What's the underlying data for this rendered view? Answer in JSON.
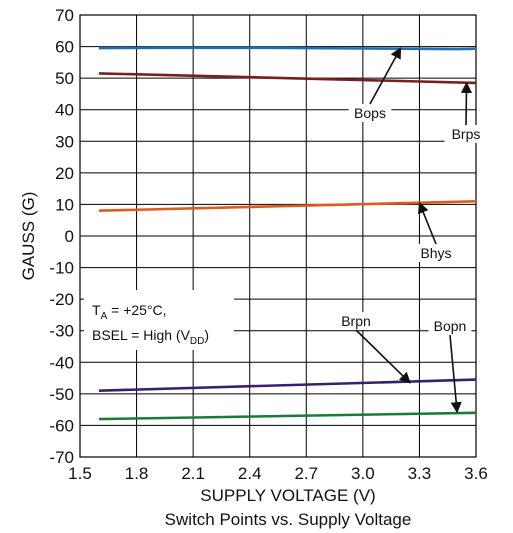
{
  "chart_data": {
    "type": "line",
    "title": "Switch Points vs. Supply Voltage",
    "xlabel": "SUPPLY VOLTAGE (V)",
    "ylabel": "GAUSS (G)",
    "xlim": [
      1.5,
      3.6
    ],
    "ylim": [
      -70,
      70
    ],
    "xticks": [
      "1.5",
      "1.8",
      "2.1",
      "2.4",
      "2.7",
      "3.0",
      "3.3",
      "3.6"
    ],
    "yticks": [
      "70",
      "60",
      "50",
      "40",
      "30",
      "20",
      "10",
      "0",
      "-10",
      "-20",
      "-30",
      "-40",
      "-50",
      "-60",
      "-70"
    ],
    "grid": true,
    "series": [
      {
        "name": "Bops",
        "color": "#1f6fb2",
        "x": [
          1.6,
          2.0,
          2.5,
          3.0,
          3.5,
          3.6
        ],
        "y": [
          59.5,
          59.6,
          59.6,
          59.4,
          59.2,
          59.3
        ]
      },
      {
        "name": "Brps",
        "color": "#7a1f1f",
        "x": [
          1.6,
          3.6
        ],
        "y": [
          51.5,
          48.5
        ]
      },
      {
        "name": "Bhys",
        "color": "#e05a1c",
        "x": [
          1.6,
          3.6
        ],
        "y": [
          8.0,
          11.0
        ]
      },
      {
        "name": "Brpn",
        "color": "#3a1f6e",
        "x": [
          1.6,
          3.6
        ],
        "y": [
          -49.0,
          -45.5
        ]
      },
      {
        "name": "Bopn",
        "color": "#1a7a3a",
        "x": [
          1.6,
          3.6
        ],
        "y": [
          -58.0,
          -56.0
        ]
      }
    ],
    "annotations": [
      {
        "label": "Bops",
        "target": [
          3.2,
          59.5
        ]
      },
      {
        "label": "Brps",
        "target": [
          3.55,
          48.5
        ]
      },
      {
        "label": "Bhys",
        "target": [
          3.3,
          10.5
        ]
      },
      {
        "label": "Brpn",
        "target": [
          3.25,
          -46.5
        ]
      },
      {
        "label": "Bopn",
        "target": [
          3.5,
          -55.8
        ]
      }
    ],
    "condition_note": {
      "line1_main": "T",
      "line1_sub": "A",
      "line1_rest": " = +25°C,",
      "line2_main": "BSEL = High (V",
      "line2_sub": "DD",
      "line2_rest": ")"
    }
  }
}
